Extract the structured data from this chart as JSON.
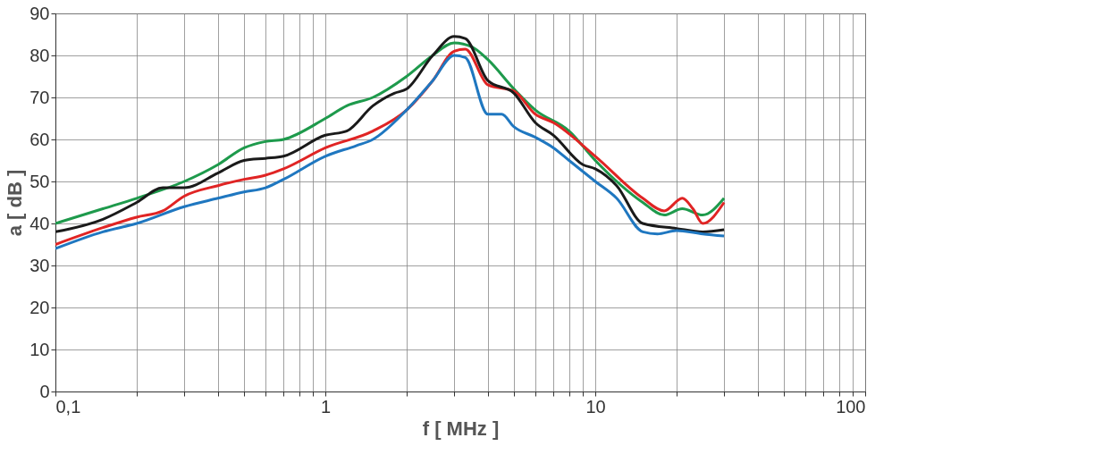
{
  "chart_data": {
    "type": "line",
    "xlabel": "f [ MHz ]",
    "ylabel": "a [ dB ]",
    "log": "x",
    "grid": true,
    "legend": false,
    "line_style": "solid",
    "marker": "none",
    "xlim": [
      0.1,
      100
    ],
    "ylim": [
      0,
      90
    ],
    "xticks": [
      {
        "value": 0.1,
        "label": "0,1"
      },
      {
        "value": 0.2,
        "label": null
      },
      {
        "value": 0.3,
        "label": null
      },
      {
        "value": 0.4,
        "label": null
      },
      {
        "value": 0.5,
        "label": null
      },
      {
        "value": 0.6,
        "label": null
      },
      {
        "value": 0.7,
        "label": null
      },
      {
        "value": 0.8,
        "label": null
      },
      {
        "value": 0.9,
        "label": null
      },
      1,
      {
        "value": 2,
        "label": null
      },
      {
        "value": 3,
        "label": null
      },
      {
        "value": 4,
        "label": null
      },
      {
        "value": 5,
        "label": null
      },
      {
        "value": 6,
        "label": null
      },
      {
        "value": 7,
        "label": null
      },
      {
        "value": 8,
        "label": null
      },
      {
        "value": 9,
        "label": null
      },
      10,
      {
        "value": 20,
        "label": null
      },
      {
        "value": 30,
        "label": null
      },
      {
        "value": 40,
        "label": null
      },
      {
        "value": 50,
        "label": null
      },
      {
        "value": 60,
        "label": null
      },
      {
        "value": 70,
        "label": null
      },
      {
        "value": 80,
        "label": null
      },
      {
        "value": 90,
        "label": null
      },
      100
    ],
    "yticks": [
      0,
      10,
      20,
      30,
      40,
      50,
      60,
      70,
      80,
      90
    ],
    "series": [
      {
        "color": "#1e9a4c",
        "x": [
          0.1,
          0.15,
          0.2,
          0.3,
          0.4,
          0.5,
          0.6,
          0.7,
          1,
          1.2,
          1.5,
          2,
          2.5,
          3,
          3.5,
          4,
          5,
          6,
          8,
          10,
          15,
          18,
          21,
          25,
          30
        ],
        "values": [
          40,
          43.5,
          46,
          50,
          54,
          58,
          59.5,
          60,
          65,
          68,
          70,
          75,
          80,
          83,
          82,
          79,
          72,
          67,
          62,
          55,
          45,
          42,
          43.5,
          42,
          46
        ]
      },
      {
        "color": "#e02424",
        "x": [
          0.1,
          0.15,
          0.2,
          0.25,
          0.3,
          0.4,
          0.5,
          0.6,
          0.7,
          1,
          1.5,
          2,
          2.5,
          3,
          3.3,
          4,
          5,
          6,
          7,
          10,
          15,
          18,
          21,
          23,
          25,
          30
        ],
        "values": [
          35,
          39,
          41.5,
          43,
          46.5,
          49,
          50.5,
          51.5,
          53,
          58,
          62,
          67,
          74,
          81,
          81.5,
          73,
          71.5,
          66,
          64,
          56,
          46,
          43,
          46,
          43.5,
          40,
          45
        ]
      },
      {
        "color": "#1a1a1a",
        "x": [
          0.1,
          0.15,
          0.2,
          0.25,
          0.3,
          0.4,
          0.5,
          0.6,
          0.7,
          1,
          1.2,
          1.5,
          1.8,
          2,
          2.5,
          3,
          3.3,
          4,
          5,
          6,
          7,
          9,
          10,
          12,
          15,
          20,
          25,
          30
        ],
        "values": [
          38,
          41,
          45,
          48.5,
          48.5,
          52,
          55,
          55.5,
          56,
          61,
          62,
          68,
          71,
          72,
          80,
          84.5,
          84,
          74,
          71,
          64,
          61,
          54,
          53,
          49,
          40,
          38.8,
          38,
          38.5
        ]
      },
      {
        "color": "#1f77c0",
        "x": [
          0.1,
          0.15,
          0.2,
          0.3,
          0.4,
          0.5,
          0.6,
          0.7,
          1,
          1.3,
          1.5,
          2,
          2.5,
          3,
          3.3,
          4,
          4.5,
          5,
          6,
          7,
          8,
          10,
          12,
          15,
          17,
          20,
          25,
          30
        ],
        "values": [
          34,
          38,
          40,
          44,
          46,
          47.5,
          48.5,
          50.5,
          56,
          58.5,
          60,
          67,
          74,
          80,
          79.5,
          66,
          66,
          63,
          60.5,
          58,
          55,
          50,
          46,
          38,
          37.5,
          38.3,
          37.5,
          37
        ]
      }
    ]
  }
}
